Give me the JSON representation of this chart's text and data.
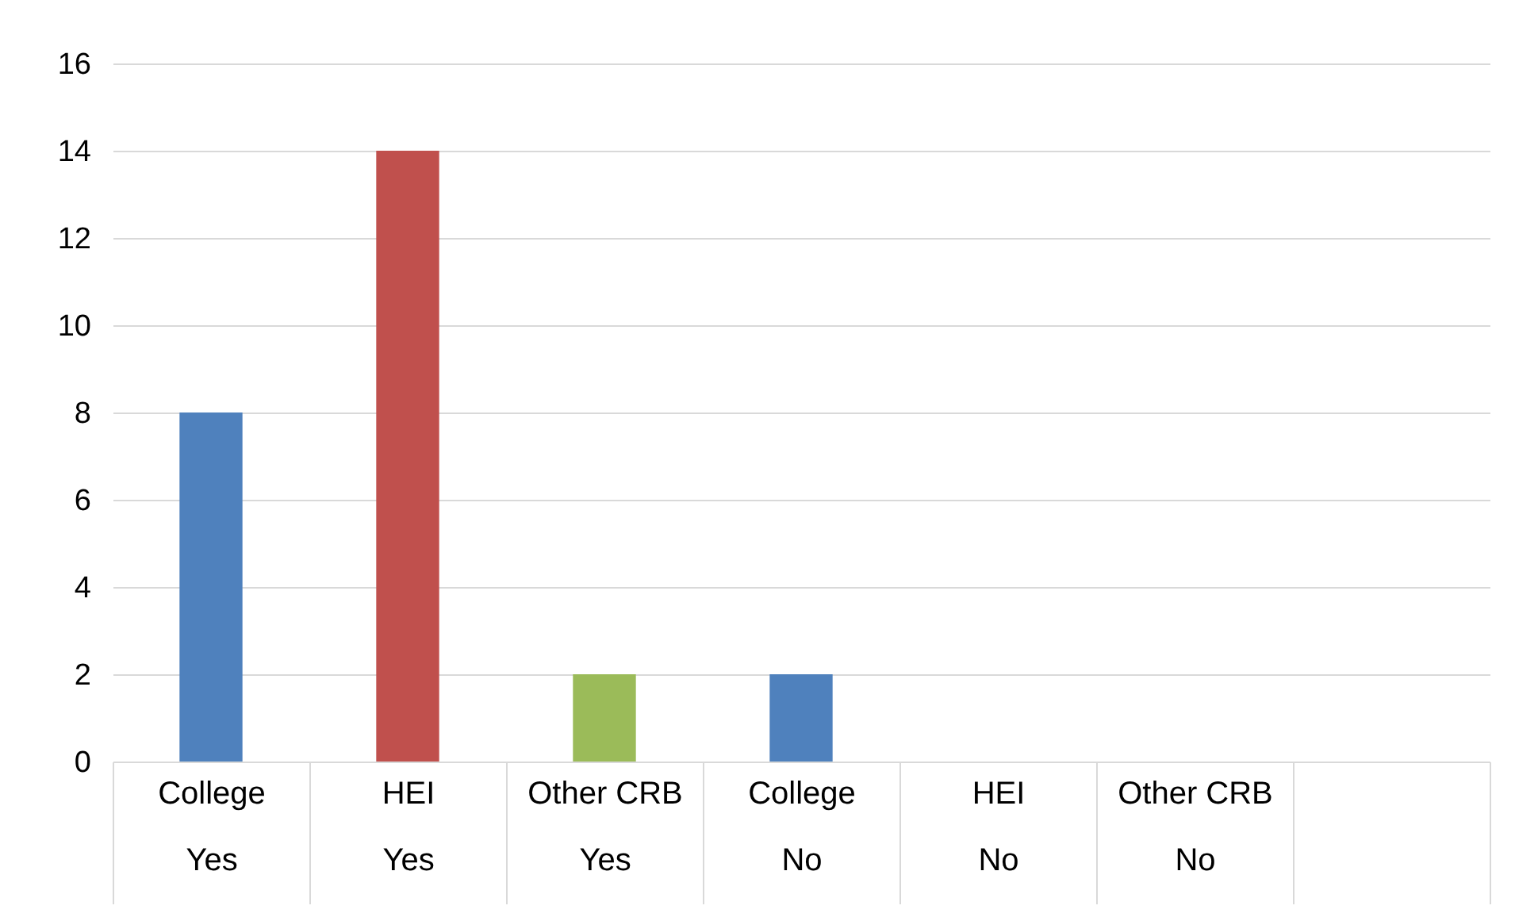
{
  "chart_data": {
    "type": "bar",
    "categories": [
      "College\nYes",
      "HEI\nYes",
      "Other CRB\nYes",
      "College\nNo",
      "HEI\nNo",
      "Other CRB\nNo",
      null
    ],
    "values": [
      8,
      14,
      2,
      2,
      0,
      0,
      null
    ],
    "colors": [
      "#4f81bd",
      "#c0504d",
      "#9bbb59",
      "#4f81bd",
      "#4f81bd",
      "#4f81bd",
      "#4f81bd"
    ],
    "ylim": [
      0,
      16
    ],
    "yticks": [
      0,
      2,
      4,
      6,
      8,
      10,
      12,
      14,
      16
    ],
    "grid": "y"
  }
}
